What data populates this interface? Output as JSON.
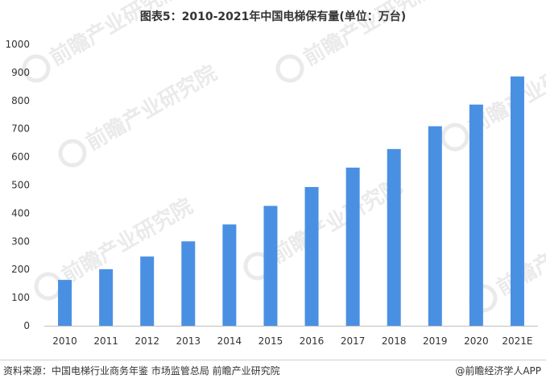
{
  "chart_data": {
    "type": "bar",
    "title": "图表5：2010-2021年中国电梯保有量(单位：万台)",
    "xlabel": "",
    "ylabel": "",
    "categories": [
      "2010",
      "2011",
      "2012",
      "2013",
      "2014",
      "2015",
      "2016",
      "2017",
      "2018",
      "2019",
      "2020",
      "2021E"
    ],
    "values": [
      163,
      201,
      246,
      300,
      360,
      426,
      493,
      562,
      628,
      709,
      786,
      886
    ],
    "ylim": [
      0,
      1000
    ],
    "yticks": [
      0,
      100,
      200,
      300,
      400,
      500,
      600,
      700,
      800,
      900,
      1000
    ],
    "grid": false,
    "colors": {
      "bar": "#4a90e2",
      "axis": "#bfbfbf",
      "text": "#333333"
    }
  },
  "watermark": {
    "text": "前瞻产业研究院",
    "icon": "qianzhan-logo-icon"
  },
  "footer": {
    "source": "资料来源：中国电梯行业商务年鉴 市场监管总局 前瞻产业研究院",
    "credit": "@前瞻经济学人APP"
  }
}
